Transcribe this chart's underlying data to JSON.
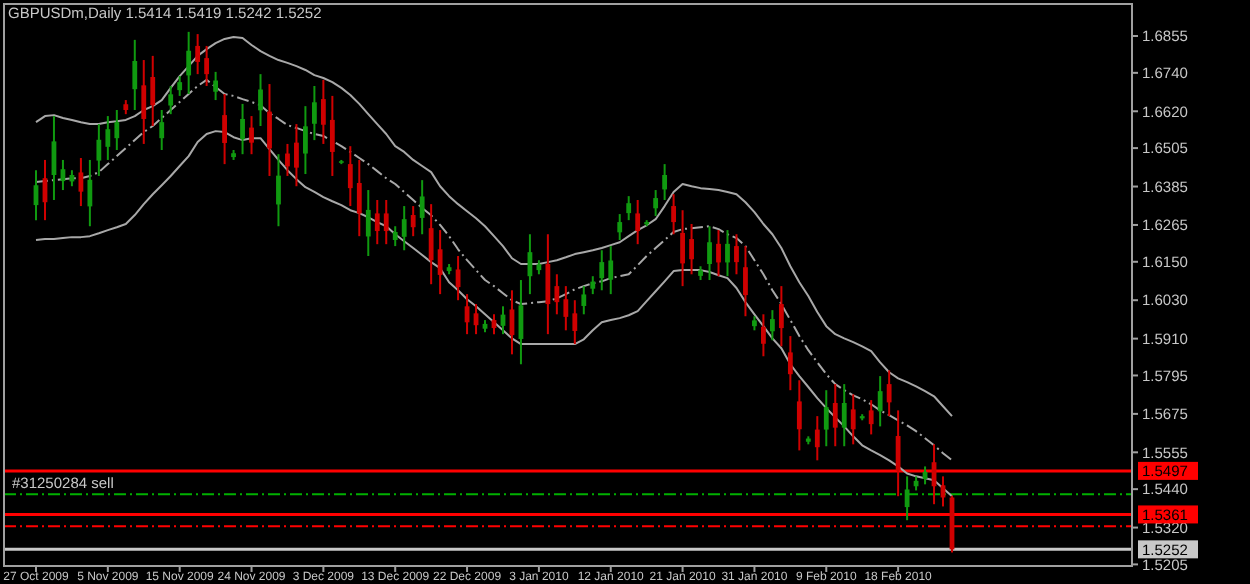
{
  "chart_data": {
    "type": "candlestick",
    "title": "GBPUSDm,Daily  1.5414 1.5419 1.5242 1.5252",
    "categories": [
      "27 Oct 2009",
      null,
      null,
      null,
      null,
      null,
      null,
      null,
      "5 Nov 2009",
      null,
      null,
      null,
      null,
      null,
      null,
      null,
      "15 Nov 2009",
      null,
      null,
      null,
      null,
      null,
      null,
      null,
      "24 Nov 2009",
      null,
      null,
      null,
      null,
      null,
      null,
      null,
      "3 Dec 2009",
      null,
      null,
      null,
      null,
      null,
      null,
      null,
      "13 Dec 2009",
      null,
      null,
      null,
      null,
      null,
      null,
      null,
      "22 Dec 2009",
      null,
      null,
      null,
      null,
      null,
      null,
      null,
      "3 Jan 2010",
      null,
      null,
      null,
      null,
      null,
      null,
      null,
      "12 Jan 2010",
      null,
      null,
      null,
      null,
      null,
      null,
      null,
      "21 Jan 2010",
      null,
      null,
      null,
      null,
      null,
      null,
      null,
      "31 Jan 2010",
      null,
      null,
      null,
      null,
      null,
      null,
      null,
      "9 Feb 2010",
      null,
      null,
      null,
      null,
      null,
      null,
      null,
      "18 Feb 2010",
      null,
      null,
      null,
      null,
      null,
      null
    ],
    "ohlc": [
      [
        1.6327,
        1.6436,
        1.628,
        1.6389
      ],
      [
        1.6411,
        1.6468,
        1.628,
        1.6336
      ],
      [
        1.6421,
        1.6605,
        1.6343,
        1.6526
      ],
      [
        1.6402,
        1.6468,
        1.6374,
        1.6439
      ],
      [
        1.6401,
        1.6436,
        1.6386,
        1.6421
      ],
      [
        1.6429,
        1.6474,
        1.6324,
        1.6369
      ],
      [
        1.6323,
        1.6468,
        1.6261,
        1.6406
      ],
      [
        1.6466,
        1.658,
        1.6418,
        1.6531
      ],
      [
        1.6509,
        1.6605,
        1.6468,
        1.6564
      ],
      [
        1.6536,
        1.6624,
        1.6499,
        1.6586
      ],
      [
        1.6642,
        1.6655,
        1.6611,
        1.6624
      ],
      [
        1.6689,
        1.6843,
        1.6624,
        1.6777
      ],
      [
        1.6701,
        1.678,
        1.6518,
        1.6596
      ],
      [
        1.6727,
        1.6793,
        1.6574,
        1.6639
      ],
      [
        1.6536,
        1.6624,
        1.6499,
        1.6586
      ],
      [
        1.6638,
        1.6699,
        1.6611,
        1.6673
      ],
      [
        1.6686,
        1.673,
        1.6668,
        1.6711
      ],
      [
        1.6732,
        1.6868,
        1.6674,
        1.6809
      ],
      [
        1.6824,
        1.6861,
        1.6736,
        1.6774
      ],
      [
        1.6786,
        1.6824,
        1.6699,
        1.6736
      ],
      [
        1.6681,
        1.6743,
        1.6655,
        1.6716
      ],
      [
        1.6608,
        1.6674,
        1.6455,
        1.6521
      ],
      [
        1.6477,
        1.6499,
        1.6468,
        1.6489
      ],
      [
        1.6533,
        1.6643,
        1.6486,
        1.6596
      ],
      [
        1.6569,
        1.6605,
        1.6486,
        1.6522
      ],
      [
        1.6623,
        1.6736,
        1.6574,
        1.6688
      ],
      [
        1.6619,
        1.6705,
        1.6418,
        1.6504
      ],
      [
        1.6329,
        1.6486,
        1.6261,
        1.6419
      ],
      [
        1.6488,
        1.6518,
        1.6418,
        1.6448
      ],
      [
        1.6522,
        1.658,
        1.6386,
        1.6444
      ],
      [
        1.6488,
        1.6636,
        1.6424,
        1.6573
      ],
      [
        1.6581,
        1.6699,
        1.653,
        1.6648
      ],
      [
        1.6658,
        1.6718,
        1.6518,
        1.6578
      ],
      [
        1.6593,
        1.6668,
        1.6418,
        1.6493
      ],
      [
        1.6459,
        1.6468,
        1.6455,
        1.6464
      ],
      [
        1.6455,
        1.6511,
        1.6324,
        1.638
      ],
      [
        1.6396,
        1.6468,
        1.623,
        1.6301
      ],
      [
        1.6229,
        1.6374,
        1.6168,
        1.6312
      ],
      [
        1.6301,
        1.6343,
        1.6205,
        1.6246
      ],
      [
        1.6301,
        1.6343,
        1.6205,
        1.6246
      ],
      [
        1.6218,
        1.6261,
        1.6199,
        1.6243
      ],
      [
        1.6228,
        1.6324,
        1.6186,
        1.6283
      ],
      [
        1.6296,
        1.6324,
        1.623,
        1.6258
      ],
      [
        1.6287,
        1.6405,
        1.6236,
        1.6354
      ],
      [
        1.6255,
        1.633,
        1.608,
        1.6155
      ],
      [
        1.6189,
        1.6249,
        1.6049,
        1.6109
      ],
      [
        1.6121,
        1.6143,
        1.6111,
        1.6133
      ],
      [
        1.6126,
        1.6168,
        1.603,
        1.6071
      ],
      [
        1.6011,
        1.6049,
        1.5924,
        1.5961
      ],
      [
        1.5989,
        1.6018,
        1.5924,
        1.5952
      ],
      [
        1.5941,
        1.5968,
        1.593,
        1.5956
      ],
      [
        1.5968,
        1.5986,
        1.5924,
        1.5943
      ],
      [
        1.595,
        1.6011,
        1.5924,
        1.5985
      ],
      [
        1.6001,
        1.6061,
        1.5861,
        1.5921
      ],
      [
        1.5909,
        1.6093,
        1.583,
        1.6014
      ],
      [
        1.6105,
        1.6236,
        1.6049,
        1.618
      ],
      [
        1.6124,
        1.6155,
        1.6111,
        1.6142
      ],
      [
        1.6143,
        1.6236,
        1.5924,
        1.6018
      ],
      [
        1.6074,
        1.6111,
        1.5986,
        1.6024
      ],
      [
        1.6033,
        1.6074,
        1.5936,
        1.5978
      ],
      [
        1.5989,
        1.603,
        1.5893,
        1.5934
      ],
      [
        1.6012,
        1.6074,
        1.5986,
        1.6048
      ],
      [
        1.6066,
        1.6105,
        1.6049,
        1.6088
      ],
      [
        1.6099,
        1.6186,
        1.6061,
        1.6149
      ],
      [
        1.6094,
        1.6199,
        1.6049,
        1.6154
      ],
      [
        1.6242,
        1.6299,
        1.6218,
        1.6274
      ],
      [
        1.6302,
        1.6355,
        1.628,
        1.6333
      ],
      [
        1.6301,
        1.6343,
        1.6205,
        1.6246
      ],
      [
        1.6267,
        1.628,
        1.6261,
        1.6274
      ],
      [
        1.6317,
        1.6374,
        1.6293,
        1.6349
      ],
      [
        1.6376,
        1.6455,
        1.6343,
        1.6421
      ],
      [
        1.6324,
        1.6361,
        1.6236,
        1.6274
      ],
      [
        1.624,
        1.6311,
        1.6074,
        1.6145
      ],
      [
        1.6221,
        1.6268,
        1.6111,
        1.6158
      ],
      [
        1.6106,
        1.6136,
        1.6093,
        1.6123
      ],
      [
        1.6143,
        1.6261,
        1.6093,
        1.6211
      ],
      [
        1.6206,
        1.6249,
        1.6105,
        1.6148
      ],
      [
        1.6148,
        1.6249,
        1.6105,
        1.6206
      ],
      [
        1.6199,
        1.6236,
        1.6111,
        1.6149
      ],
      [
        1.6133,
        1.6199,
        1.598,
        1.6046
      ],
      [
        1.5949,
        1.598,
        1.5936,
        1.5967
      ],
      [
        1.5947,
        1.5986,
        1.5855,
        1.5894
      ],
      [
        1.5933,
        1.5999,
        1.5905,
        1.5971
      ],
      [
        1.6018,
        1.6074,
        1.5886,
        1.5943
      ],
      [
        1.5867,
        1.5918,
        1.5749,
        1.5799
      ],
      [
        1.5714,
        1.578,
        1.5561,
        1.5627
      ],
      [
        1.5588,
        1.5605,
        1.558,
        1.5598
      ],
      [
        1.5626,
        1.5668,
        1.553,
        1.5571
      ],
      [
        1.5626,
        1.5749,
        1.5574,
        1.5696
      ],
      [
        1.5709,
        1.5768,
        1.5574,
        1.5632
      ],
      [
        1.5632,
        1.5768,
        1.5574,
        1.5709
      ],
      [
        1.5689,
        1.5736,
        1.558,
        1.5627
      ],
      [
        1.5661,
        1.5674,
        1.5655,
        1.5668
      ],
      [
        1.5686,
        1.5718,
        1.5611,
        1.5643
      ],
      [
        1.5683,
        1.5793,
        1.5636,
        1.5746
      ],
      [
        1.5768,
        1.5811,
        1.5668,
        1.5711
      ],
      [
        1.5606,
        1.5686,
        1.5418,
        1.5498
      ],
      [
        1.5384,
        1.548,
        1.5343,
        1.5439
      ],
      [
        1.5449,
        1.548,
        1.5436,
        1.5466
      ],
      [
        1.5472,
        1.5511,
        1.5455,
        1.5494
      ],
      [
        1.5524,
        1.558,
        1.5393,
        1.5449
      ],
      [
        1.5452,
        1.548,
        1.5386,
        1.5414
      ],
      [
        1.5414,
        1.5419,
        1.5242,
        1.5252
      ]
    ],
    "colors": [
      "#109a10",
      "#d00000",
      "#109a10",
      "#109a10",
      "#109a10",
      "#d00000",
      "#109a10",
      "#109a10",
      "#109a10",
      "#109a10",
      "#d00000",
      "#109a10",
      "#d00000",
      "#d00000",
      "#109a10",
      "#109a10",
      "#109a10",
      "#109a10",
      "#d00000",
      "#d00000",
      "#109a10",
      "#d00000",
      "#109a10",
      "#109a10",
      "#d00000",
      "#109a10",
      "#d00000",
      "#109a10",
      "#d00000",
      "#d00000",
      "#109a10",
      "#109a10",
      "#d00000",
      "#d00000",
      "#109a10",
      "#d00000",
      "#d00000",
      "#109a10",
      "#d00000",
      "#d00000",
      "#109a10",
      "#109a10",
      "#d00000",
      "#109a10",
      "#d00000",
      "#d00000",
      "#109a10",
      "#d00000",
      "#d00000",
      "#d00000",
      "#109a10",
      "#d00000",
      "#109a10",
      "#d00000",
      "#109a10",
      "#109a10",
      "#109a10",
      "#d00000",
      "#d00000",
      "#d00000",
      "#d00000",
      "#109a10",
      "#109a10",
      "#109a10",
      "#109a10",
      "#109a10",
      "#109a10",
      "#d00000",
      "#109a10",
      "#109a10",
      "#109a10",
      "#d00000",
      "#d00000",
      "#d00000",
      "#109a10",
      "#109a10",
      "#d00000",
      "#109a10",
      "#d00000",
      "#d00000",
      "#109a10",
      "#d00000",
      "#109a10",
      "#d00000",
      "#d00000",
      "#d00000",
      "#109a10",
      "#d00000",
      "#109a10",
      "#d00000",
      "#109a10",
      "#d00000",
      "#109a10",
      "#d00000",
      "#109a10",
      "#d00000",
      "#d00000",
      "#109a10",
      "#109a10",
      "#109a10",
      "#d00000",
      "#d00000",
      "#d00000"
    ],
    "series": [
      {
        "type": "line",
        "color": "#a8a8a8",
        "line_style": "solid",
        "values": [
          1.6586,
          1.6605,
          1.6608,
          1.6599,
          1.6593,
          1.6586,
          1.658,
          1.658,
          1.6586,
          1.6589,
          1.6593,
          1.6605,
          1.6624,
          1.6636,
          1.6655,
          1.6693,
          1.673,
          1.6761,
          1.6793,
          1.6814,
          1.6833,
          1.6846,
          1.6852,
          1.6849,
          1.6827,
          1.6808,
          1.6793,
          1.678,
          1.6771,
          1.6761,
          1.6749,
          1.6733,
          1.6724,
          1.6711,
          1.6693,
          1.6671,
          1.6643,
          1.6611,
          1.658,
          1.6549,
          1.6511,
          1.6493,
          1.6468,
          1.6449,
          1.643,
          1.6386,
          1.6355,
          1.633,
          1.6308,
          1.6286,
          1.6261,
          1.623,
          1.6199,
          1.6161,
          1.6143,
          1.6143,
          1.6143,
          1.6149,
          1.6155,
          1.6164,
          1.6174,
          1.618,
          1.6186,
          1.6193,
          1.6202,
          1.6211,
          1.623,
          1.6249,
          1.6264,
          1.6283,
          1.6324,
          1.6368,
          1.6393,
          1.6386,
          1.638,
          1.6377,
          1.6374,
          1.6368,
          1.6361,
          1.6336,
          1.6305,
          1.6268,
          1.6236,
          1.6193,
          1.6136,
          1.6086,
          1.6043,
          1.5993,
          1.5949,
          1.5924,
          1.5911,
          1.5899,
          1.5886,
          1.5871,
          1.5836,
          1.5805,
          1.5786,
          1.5774,
          1.5761,
          1.5746,
          1.573,
          1.5699,
          1.5668
        ]
      },
      {
        "type": "line",
        "color": "#a8a8a8",
        "line_style": "dashed",
        "values": [
          1.6399,
          1.6402,
          1.6405,
          1.6408,
          1.6411,
          1.6411,
          1.6418,
          1.643,
          1.6455,
          1.648,
          1.6505,
          1.653,
          1.6555,
          1.6574,
          1.6599,
          1.6624,
          1.6649,
          1.6674,
          1.6699,
          1.6718,
          1.6696,
          1.6674,
          1.6668,
          1.6658,
          1.6649,
          1.6639,
          1.6614,
          1.6596,
          1.6577,
          1.6568,
          1.6558,
          1.6549,
          1.6543,
          1.6527,
          1.6511,
          1.6493,
          1.6474,
          1.6455,
          1.6433,
          1.6411,
          1.6393,
          1.6368,
          1.6343,
          1.6318,
          1.6295,
          1.6265,
          1.623,
          1.6189,
          1.6155,
          1.6124,
          1.6093,
          1.6074,
          1.6052,
          1.603,
          1.6018,
          1.6021,
          1.6024,
          1.6027,
          1.6036,
          1.6049,
          1.6064,
          1.6074,
          1.6083,
          1.6089,
          1.6099,
          1.6105,
          1.6111,
          1.6139,
          1.6168,
          1.6193,
          1.6218,
          1.6243,
          1.6252,
          1.6255,
          1.6258,
          1.6261,
          1.6252,
          1.6236,
          1.6224,
          1.6199,
          1.6155,
          1.6111,
          1.6061,
          1.6018,
          1.5968,
          1.5918,
          1.5874,
          1.5836,
          1.5799,
          1.5768,
          1.5749,
          1.5733,
          1.5721,
          1.5705,
          1.5686,
          1.5671,
          1.5655,
          1.5639,
          1.5621,
          1.5599,
          1.5577,
          1.5552,
          1.553
        ]
      },
      {
        "type": "line",
        "color": "#a8a8a8",
        "line_style": "solid",
        "values": [
          1.6218,
          1.6221,
          1.6221,
          1.6224,
          1.6227,
          1.6227,
          1.623,
          1.6239,
          1.6249,
          1.6258,
          1.6268,
          1.6296,
          1.633,
          1.6361,
          1.6389,
          1.6418,
          1.6449,
          1.648,
          1.6524,
          1.6549,
          1.6558,
          1.6555,
          1.6539,
          1.653,
          1.6536,
          1.6536,
          1.6502,
          1.6468,
          1.6436,
          1.6408,
          1.6383,
          1.6368,
          1.6352,
          1.6339,
          1.6327,
          1.6311,
          1.6302,
          1.6289,
          1.6274,
          1.6261,
          1.6236,
          1.6214,
          1.6193,
          1.6171,
          1.6149,
          1.613,
          1.6086,
          1.6061,
          1.6033,
          1.6011,
          1.5986,
          1.5961,
          1.5936,
          1.5911,
          1.5893,
          1.5893,
          1.5893,
          1.5893,
          1.5893,
          1.5893,
          1.5893,
          1.5908,
          1.5936,
          1.5961,
          1.5968,
          1.5974,
          1.5983,
          1.5996,
          1.6027,
          1.6058,
          1.6089,
          1.6121,
          1.6124,
          1.6124,
          1.6124,
          1.6118,
          1.6108,
          1.6099,
          1.6068,
          1.6024,
          1.5986,
          1.5949,
          1.5911,
          1.588,
          1.583,
          1.5793,
          1.5759,
          1.5724,
          1.5693,
          1.5664,
          1.5636,
          1.5605,
          1.5577,
          1.5561,
          1.5546,
          1.553,
          1.5511,
          1.5489,
          1.548,
          1.5474,
          1.5468,
          1.5443,
          1.5418
        ]
      }
    ],
    "ylim": [
      1.52,
      1.6955
    ],
    "yticks": [
      1.6855,
      {
        "value": 1.674,
        "label": "1.6740"
      },
      {
        "value": 1.662,
        "label": "1.6620"
      },
      1.6505,
      1.6385,
      1.6265,
      {
        "value": 1.615,
        "label": "1.6150"
      },
      {
        "value": 1.603,
        "label": "1.6030"
      },
      {
        "value": 1.591,
        "label": "1.5910"
      },
      1.5795,
      1.5675,
      1.5555,
      {
        "value": 1.544,
        "label": "1.5440"
      },
      {
        "value": 1.532,
        "label": "1.5320"
      },
      1.5205
    ],
    "ref_lines": [
      {
        "axis": "y",
        "value": 1.5497,
        "label": "1.5497",
        "color": "#ff0000",
        "line_style": "solid"
      },
      {
        "axis": "y",
        "value": 1.5424,
        "label": "#31250284 sell",
        "color": "#00b000",
        "line_style": "dashed"
      },
      {
        "axis": "y",
        "value": 1.5361,
        "label": "1.5361",
        "color": "#ff0000",
        "line_style": "solid"
      },
      {
        "axis": "y",
        "value": 1.5324,
        "label": null,
        "color": "#ff0000",
        "line_style": "dashed"
      },
      {
        "axis": "y",
        "value": 1.5252,
        "label": "1.5252",
        "color": "#c8c8c8",
        "line_style": "solid"
      }
    ],
    "grid": false
  }
}
